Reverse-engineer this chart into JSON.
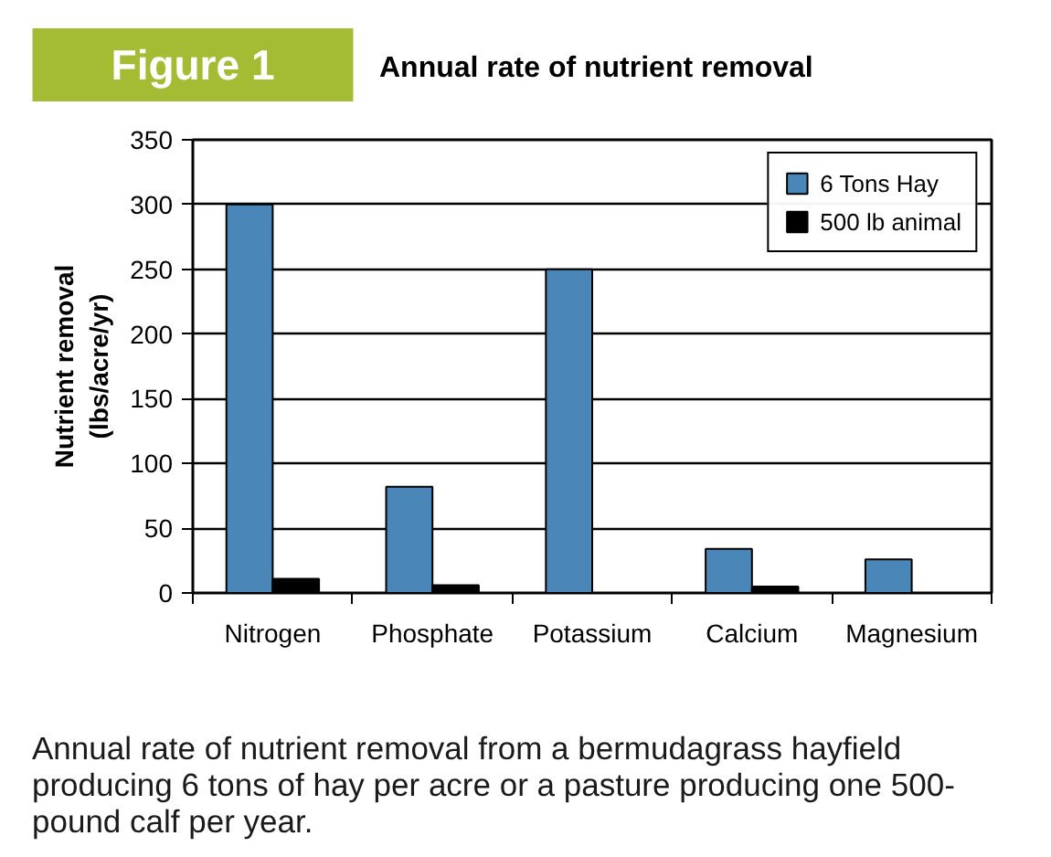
{
  "chart_data": {
    "type": "bar",
    "title": "Annual rate of nutrient removal",
    "ylabel": "Nutrient removal (lbs/acre/yr)",
    "annotations": [
      "Figure 1",
      "Annual rate of nutrient removal from a bermudagrass hayfield producing 6 tons of hay per acre or a pasture producing one 500-pound calf per year."
    ],
    "categories": [
      "Nitrogen",
      "Phosphate",
      "Potassium",
      "Calcium",
      "Magnesium"
    ],
    "series": [
      {
        "name": "6 Tons Hay",
        "color": "#4a86b8",
        "values": [
          300,
          82,
          250,
          34,
          26
        ]
      },
      {
        "name": "500 lb animal",
        "color": "#000000",
        "values": [
          11,
          6,
          null,
          5,
          null
        ]
      }
    ],
    "ylim": [
      0,
      350
    ],
    "yticks": [
      0,
      50,
      100,
      150,
      200,
      250,
      300,
      350
    ],
    "grid": "y",
    "legend": "top right"
  }
}
